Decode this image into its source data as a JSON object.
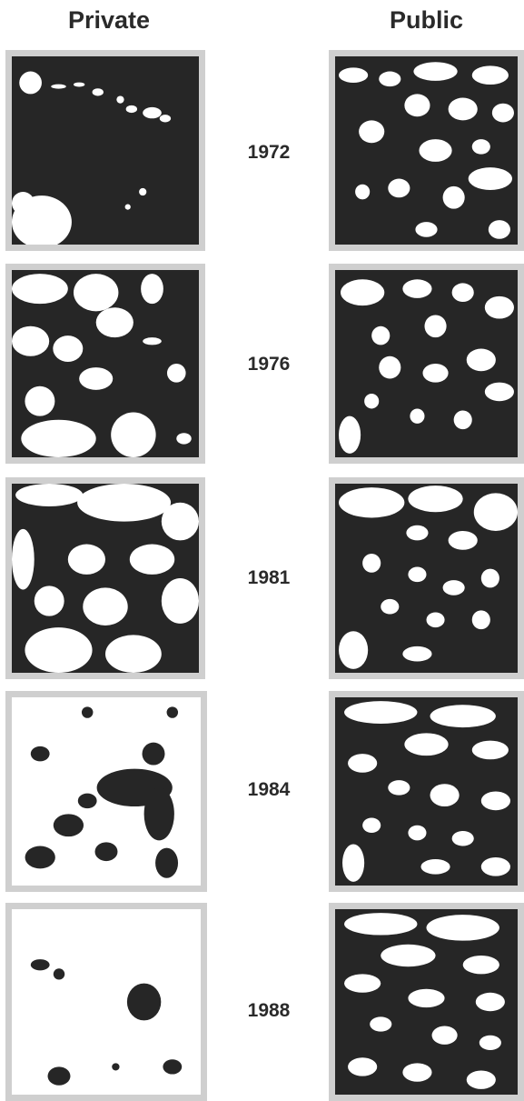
{
  "columns": {
    "private": "Private",
    "public": "Public"
  },
  "rows": [
    {
      "year": "1972",
      "private_white_fraction": 0.08,
      "public_white_fraction": 0.2
    },
    {
      "year": "1976",
      "private_white_fraction": 0.35,
      "public_white_fraction": 0.22
    },
    {
      "year": "1981",
      "private_white_fraction": 0.55,
      "public_white_fraction": 0.3
    },
    {
      "year": "1984",
      "private_white_fraction": 0.72,
      "public_white_fraction": 0.38
    },
    {
      "year": "1988",
      "private_white_fraction": 0.9,
      "public_white_fraction": 0.42
    }
  ],
  "colors": {
    "forest": "#262626",
    "cleared": "#ffffff",
    "frame": "#cfcfcf"
  }
}
